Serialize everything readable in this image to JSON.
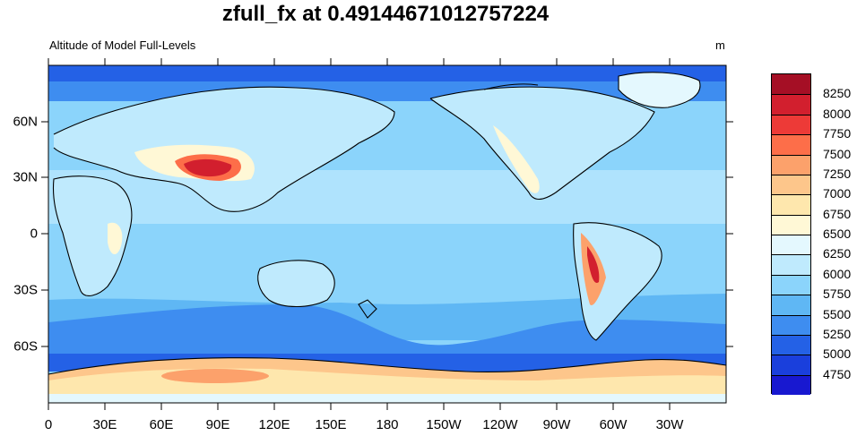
{
  "title": "zfull_fx at 0.49144671012757224",
  "subtitle": "Altitude of Model Full-Levels",
  "unit": "m",
  "x_ticks": [
    "0",
    "30E",
    "60E",
    "90E",
    "120E",
    "150E",
    "180",
    "150W",
    "120W",
    "90W",
    "60W",
    "30W"
  ],
  "y_ticks": [
    "60N",
    "30N",
    "0",
    "30S",
    "60S"
  ],
  "colorbar": {
    "labels": [
      "8250",
      "8000",
      "7750",
      "7500",
      "7250",
      "7000",
      "6750",
      "6500",
      "6250",
      "6000",
      "5750",
      "5500",
      "5250",
      "5000",
      "4750"
    ],
    "colors": [
      "#a50f25",
      "#d21f2e",
      "#ed3a37",
      "#fd6e49",
      "#fca16b",
      "#fdc68b",
      "#fee7ad",
      "#fff8d6",
      "#e4f8fe",
      "#bfeafd",
      "#8bd4fb",
      "#5fb7f4",
      "#3e8df0",
      "#2461e6",
      "#1a3fdc",
      "#1818d0"
    ]
  }
}
